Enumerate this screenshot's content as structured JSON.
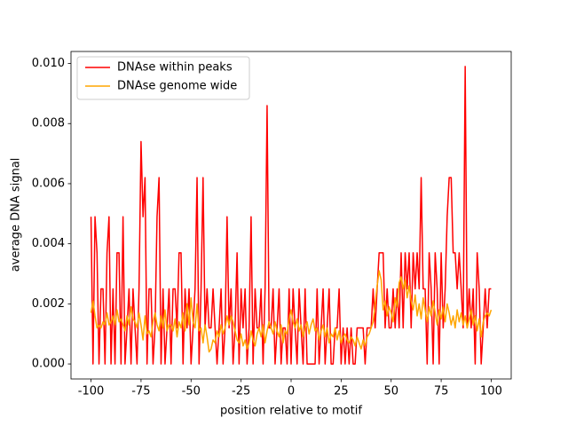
{
  "chart_data": {
    "type": "line",
    "xlabel": "position relative to motif",
    "ylabel": "average DNA signal",
    "x": [
      -100,
      -99,
      -98,
      -97,
      -96,
      -95,
      -94,
      -93,
      -92,
      -91,
      -90,
      -89,
      -88,
      -87,
      -86,
      -85,
      -84,
      -83,
      -82,
      -81,
      -80,
      -79,
      -78,
      -77,
      -76,
      -75,
      -74,
      -73,
      -72,
      -71,
      -70,
      -69,
      -68,
      -67,
      -66,
      -65,
      -64,
      -63,
      -62,
      -61,
      -60,
      -59,
      -58,
      -57,
      -56,
      -55,
      -54,
      -53,
      -52,
      -51,
      -50,
      -49,
      -48,
      -47,
      -46,
      -45,
      -44,
      -43,
      -42,
      -41,
      -40,
      -39,
      -38,
      -37,
      -36,
      -35,
      -34,
      -33,
      -32,
      -31,
      -30,
      -29,
      -28,
      -27,
      -26,
      -25,
      -24,
      -23,
      -22,
      -21,
      -20,
      -19,
      -18,
      -17,
      -16,
      -15,
      -14,
      -13,
      -12,
      -11,
      -10,
      -9,
      -8,
      -7,
      -6,
      -5,
      -4,
      -3,
      -2,
      -1,
      0,
      1,
      2,
      3,
      4,
      5,
      6,
      7,
      8,
      9,
      10,
      11,
      12,
      13,
      14,
      15,
      16,
      17,
      18,
      19,
      20,
      21,
      22,
      23,
      24,
      25,
      26,
      27,
      28,
      29,
      30,
      31,
      32,
      33,
      34,
      35,
      36,
      37,
      38,
      39,
      40,
      41,
      42,
      43,
      44,
      45,
      46,
      47,
      48,
      49,
      50,
      51,
      52,
      53,
      54,
      55,
      56,
      57,
      58,
      59,
      60,
      61,
      62,
      63,
      64,
      65,
      66,
      67,
      68,
      69,
      70,
      71,
      72,
      73,
      74,
      75,
      76,
      77,
      78,
      79,
      80,
      81,
      82,
      83,
      84,
      85,
      86,
      87,
      88,
      89,
      90,
      91,
      92,
      93,
      94,
      95,
      96,
      97,
      98,
      99,
      100
    ],
    "series": [
      {
        "name": "DNAse within peaks",
        "color": "#ff0000",
        "values": [
          0.0049,
          0,
          0.0049,
          0.0037,
          0,
          0.0025,
          0.0025,
          0,
          0.0037,
          0.0049,
          0,
          0.0025,
          0,
          0.0037,
          0.0037,
          0,
          0.0049,
          0,
          0.0012,
          0.0025,
          0,
          0.0025,
          0.0012,
          0,
          0.0025,
          0.0074,
          0.0049,
          0.0062,
          0,
          0.0025,
          0.0025,
          0,
          0.0012,
          0.0049,
          0.0062,
          0,
          0.0025,
          0,
          0.0012,
          0.0025,
          0,
          0.0025,
          0.0025,
          0.0012,
          0.0037,
          0.0037,
          0,
          0.0025,
          0.0012,
          0.0025,
          0,
          0.0012,
          0.0025,
          0.0062,
          0,
          0.0025,
          0.0062,
          0.0012,
          0.0025,
          0.0012,
          0.0012,
          0.0025,
          0.0012,
          0,
          0.0012,
          0.0025,
          0,
          0.0012,
          0.0049,
          0.0012,
          0.0025,
          0,
          0.0012,
          0.0037,
          0,
          0.0025,
          0.0012,
          0.0025,
          0,
          0.0012,
          0.0049,
          0,
          0.0025,
          0.0012,
          0.0012,
          0.0025,
          0,
          0.0025,
          0.0086,
          0.0012,
          0.0012,
          0.0025,
          0,
          0.0012,
          0.0025,
          0,
          0.0012,
          0.0012,
          0,
          0.0025,
          0,
          0.0025,
          0.0012,
          0,
          0.0025,
          0.0012,
          0,
          0.0025,
          0,
          0,
          0,
          0,
          0,
          0.0025,
          0,
          0.0012,
          0.0025,
          0,
          0.0012,
          0.0025,
          0,
          0,
          0.0012,
          0.0012,
          0.0025,
          0,
          0.0012,
          0,
          0.0012,
          0,
          0.0012,
          0,
          0,
          0.0012,
          0.0012,
          0.0012,
          0.0012,
          0,
          0.0012,
          0.0012,
          0.0012,
          0.0025,
          0.0012,
          0.0025,
          0.0037,
          0.0037,
          0.0037,
          0.0012,
          0.0025,
          0.0012,
          0.0012,
          0.0025,
          0.0012,
          0.0025,
          0.0012,
          0.0037,
          0.0012,
          0.0037,
          0.0025,
          0.0037,
          0.0012,
          0.0037,
          0.0025,
          0.0037,
          0.0025,
          0.0062,
          0.0025,
          0.0025,
          0,
          0.0037,
          0.0025,
          0,
          0.0037,
          0.0025,
          0,
          0.0037,
          0.0012,
          0.0025,
          0.0049,
          0.0062,
          0.0062,
          0.0037,
          0.0037,
          0.0025,
          0.0037,
          0.0025,
          0.0012,
          0.0099,
          0.0012,
          0.0025,
          0.0012,
          0.0025,
          0,
          0.0037,
          0.0025,
          0,
          0.0012,
          0.0025,
          0.0012,
          0.0025,
          0.0025
        ]
      },
      {
        "name": "DNAse genome wide",
        "color": "#ffa500",
        "values": [
          0.0017,
          0.0021,
          0.0016,
          0.0012,
          0.0013,
          0.0012,
          0.0014,
          0.0013,
          0.0017,
          0.0013,
          0.0014,
          0.0016,
          0.0013,
          0.0018,
          0.0014,
          0.0015,
          0.0013,
          0.0011,
          0.0016,
          0.0013,
          0.0019,
          0.0015,
          0.0014,
          0.0012,
          0.0017,
          0.0013,
          0.0008,
          0.0016,
          0.001,
          0.0011,
          0.0009,
          0.0014,
          0.0017,
          0.0013,
          0.0011,
          0.0016,
          0.0012,
          0.0018,
          0.0011,
          0.0013,
          0.0013,
          0.0011,
          0.0015,
          0.0009,
          0.0014,
          0.0012,
          0.0017,
          0.0011,
          0.002,
          0.0013,
          0.0022,
          0.0014,
          0.0012,
          0.002,
          0.0011,
          0.0012,
          0.0007,
          0.0013,
          0.0009,
          0.0004,
          0.0005,
          0.0008,
          0.0007,
          0.0011,
          0.0009,
          0.0013,
          0.001,
          0.0012,
          0.0016,
          0.0013,
          0.0016,
          0.0014,
          0.0011,
          0.0008,
          0.0007,
          0.001,
          0.0006,
          0.0008,
          0.0005,
          0.0007,
          0.0011,
          0.0008,
          0.0006,
          0.001,
          0.0012,
          0.0009,
          0.0013,
          0.0007,
          0.0011,
          0.0014,
          0.0012,
          0.001,
          0.0014,
          0.0011,
          0.0009,
          0.0013,
          0.0007,
          0.0011,
          0.001,
          0.0015,
          0.0018,
          0.0014,
          0.0012,
          0.0015,
          0.0011,
          0.0013,
          0.0009,
          0.0012,
          0.0014,
          0.001,
          0.0013,
          0.0015,
          0.0011,
          0.0012,
          0.0008,
          0.0011,
          0.0013,
          0.0009,
          0.0012,
          0.0007,
          0.001,
          0.0009,
          0.0012,
          0.0008,
          0.0011,
          0.0007,
          0.0009,
          0.001,
          0.0008,
          0.0007,
          0.0009,
          0.0008,
          0.0006,
          0.0009,
          0.0007,
          0.0005,
          0.0008,
          0.0006,
          0.0009,
          0.001,
          0.0012,
          0.0014,
          0.002,
          0.0026,
          0.0031,
          0.0028,
          0.0018,
          0.0021,
          0.0016,
          0.0019,
          0.0017,
          0.0014,
          0.0022,
          0.0019,
          0.0027,
          0.0029,
          0.0025,
          0.0028,
          0.0022,
          0.0026,
          0.0021,
          0.0018,
          0.0023,
          0.0016,
          0.002,
          0.0015,
          0.0022,
          0.0018,
          0.0014,
          0.0019,
          0.0016,
          0.0021,
          0.0017,
          0.0013,
          0.0018,
          0.0015,
          0.0019,
          0.0014,
          0.002,
          0.0017,
          0.0013,
          0.0016,
          0.0012,
          0.0018,
          0.0014,
          0.0017,
          0.0013,
          0.0016,
          0.0012,
          0.0015,
          0.0018,
          0.0013,
          0.0016,
          0.0011,
          0.0015,
          0.0009,
          0.0014,
          0.0016,
          0.0017,
          0.0016,
          0.0018
        ]
      }
    ],
    "xlim": [
      -110,
      110
    ],
    "ylim": [
      -0.0005,
      0.0104
    ],
    "xticks": [
      -100,
      -75,
      -50,
      -25,
      0,
      25,
      50,
      75,
      100
    ],
    "yticks": [
      {
        "value": 0,
        "label": "0.000"
      },
      {
        "value": 0.002,
        "label": "0.002"
      },
      {
        "value": 0.004,
        "label": "0.004"
      },
      {
        "value": 0.006,
        "label": "0.006"
      },
      {
        "value": 0.008,
        "label": "0.008"
      },
      {
        "value": 0.01,
        "label": "0.010"
      }
    ],
    "legend": "upper left"
  }
}
